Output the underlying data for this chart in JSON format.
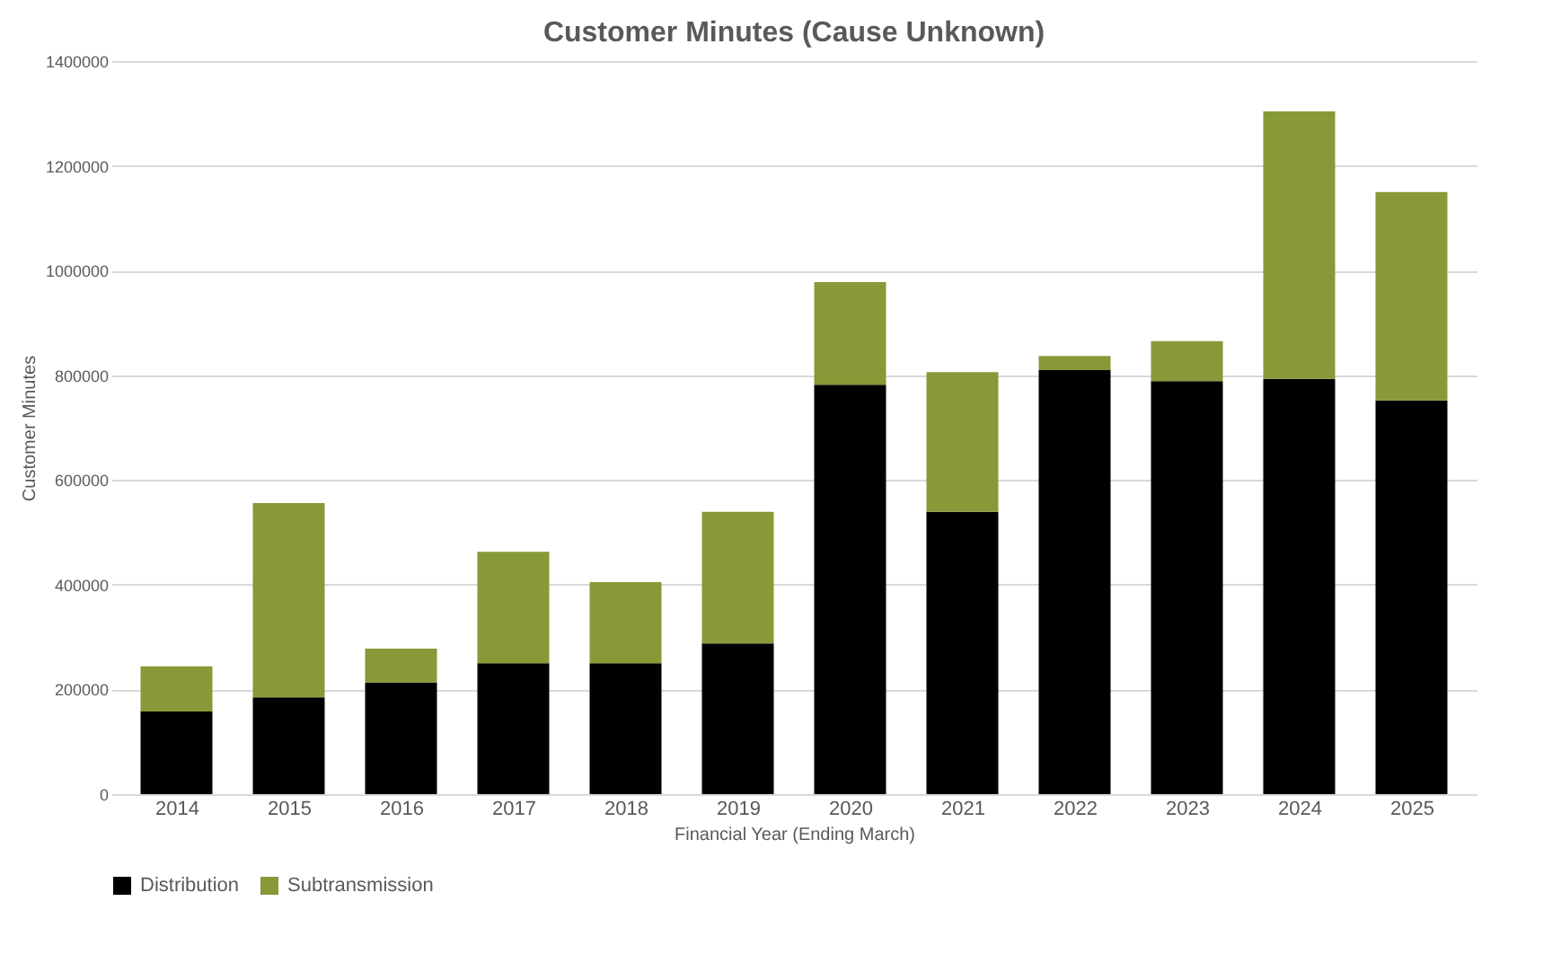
{
  "chart_data": {
    "type": "bar",
    "title": "Customer Minutes (Cause Unknown)",
    "xlabel": "Financial Year (Ending March)",
    "ylabel": "Customer Minutes",
    "categories": [
      "2014",
      "2015",
      "2016",
      "2017",
      "2018",
      "2019",
      "2020",
      "2021",
      "2022",
      "2023",
      "2024",
      "2025"
    ],
    "series": [
      {
        "name": "Distribution",
        "color": "#000000",
        "values": [
          158000,
          185000,
          213000,
          250000,
          250000,
          288000,
          782000,
          539000,
          810000,
          789000,
          793000,
          752000
        ]
      },
      {
        "name": "Subtransmission",
        "color": "#879a37",
        "values": [
          86000,
          371000,
          65000,
          213000,
          155000,
          251000,
          196000,
          267000,
          27000,
          76000,
          511000,
          398000
        ]
      }
    ],
    "stacked": true,
    "ylim": [
      0,
      1400000
    ],
    "yticks": [
      0,
      200000,
      400000,
      600000,
      800000,
      1000000,
      1200000,
      1400000
    ],
    "grid": "y",
    "legend": "bottom"
  }
}
